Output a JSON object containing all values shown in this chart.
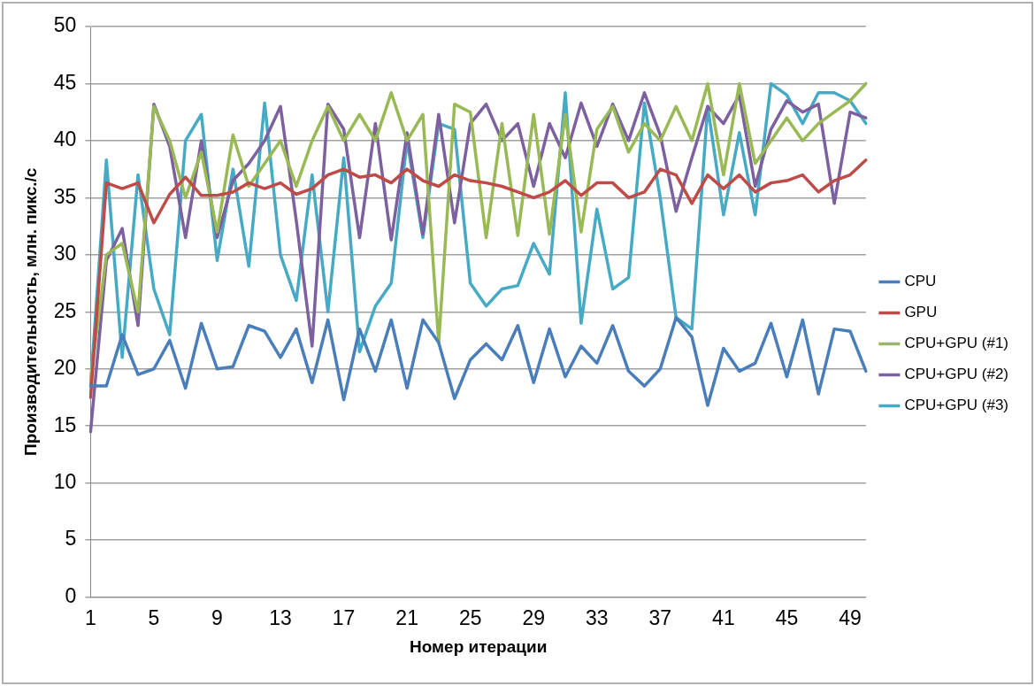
{
  "chart_data": {
    "type": "line",
    "xlabel": "Номер итерации",
    "ylabel": "Производительность, млн. пикс./с",
    "categories": [
      "1",
      null,
      null,
      null,
      "5",
      null,
      null,
      null,
      "9",
      null,
      null,
      null,
      "13",
      null,
      null,
      null,
      "17",
      null,
      null,
      null,
      "21",
      null,
      null,
      null,
      "25",
      null,
      null,
      null,
      "29",
      null,
      null,
      null,
      "33",
      null,
      null,
      null,
      "37",
      null,
      null,
      null,
      "41",
      null,
      null,
      null,
      "45",
      null,
      null,
      null,
      "49",
      null
    ],
    "ylim": [
      0,
      50
    ],
    "yticks": [
      0,
      5,
      10,
      15,
      20,
      25,
      30,
      35,
      40,
      45,
      50
    ],
    "grid": "y",
    "legend": "right",
    "marker": "none",
    "line_style": "solid",
    "series": [
      {
        "name": "CPU",
        "color": "#4a7ebb",
        "values": [
          18.5,
          18.5,
          23,
          19.5,
          20,
          22.5,
          18.3,
          24,
          20,
          20.2,
          23.8,
          23.3,
          21,
          23.5,
          18.8,
          24.3,
          17.3,
          23.5,
          19.8,
          24.3,
          18.3,
          24.3,
          22.3,
          17.4,
          20.8,
          22.2,
          20.8,
          23.8,
          18.8,
          23.5,
          19.3,
          22,
          20.5,
          23.8,
          19.8,
          18.5,
          20,
          24.5,
          22.8,
          16.8,
          21.8,
          19.8,
          20.5,
          24,
          19.3,
          24.3,
          17.8,
          23.5,
          23.3,
          19.8
        ]
      },
      {
        "name": "GPU",
        "color": "#be4b48",
        "values": [
          17.5,
          36.3,
          35.8,
          36.3,
          32.8,
          35.3,
          36.8,
          35.2,
          35.2,
          35.5,
          36.3,
          35.8,
          36.3,
          35.3,
          35.8,
          37,
          37.5,
          36.8,
          37,
          36.3,
          37.5,
          36.5,
          36,
          37,
          36.5,
          36.3,
          36,
          35.5,
          35,
          35.5,
          36.5,
          35.2,
          36.3,
          36.3,
          35,
          35.5,
          37.5,
          37,
          34.5,
          37,
          35.8,
          37,
          35.5,
          36.3,
          36.5,
          37,
          35.5,
          36.5,
          37,
          38.3
        ]
      },
      {
        "name": "CPU+GPU (#1)",
        "color": "#98b954",
        "values": [
          19,
          30,
          31,
          25,
          43,
          40,
          35,
          39,
          32,
          40.5,
          36,
          38,
          40,
          36,
          40,
          43,
          40,
          42.3,
          40,
          44.2,
          40,
          42.3,
          22.3,
          43.2,
          42.5,
          31.5,
          41.5,
          31.7,
          42.3,
          31.8,
          42.3,
          32,
          41,
          43,
          39,
          41.5,
          40,
          43,
          40,
          45,
          37,
          45,
          38,
          40,
          42,
          40,
          41.5,
          42.5,
          43.5,
          45
        ]
      },
      {
        "name": "CPU+GPU (#2)",
        "color": "#7d60a0",
        "values": [
          14.5,
          29.5,
          32.3,
          23.8,
          43.2,
          39.5,
          31.5,
          40,
          31.5,
          36.5,
          38,
          40,
          43,
          33,
          22,
          43.2,
          41,
          31.5,
          41.5,
          31.3,
          40.7,
          31.8,
          42.3,
          32.8,
          41.5,
          43.2,
          40,
          41.5,
          36,
          41.5,
          38.5,
          43.3,
          39.5,
          43.2,
          40,
          44.2,
          40.5,
          33.8,
          38.5,
          43,
          41.5,
          44,
          36,
          41,
          43.5,
          42.5,
          43.2,
          34.5,
          42.5,
          42
        ]
      },
      {
        "name": "CPU+GPU (#3)",
        "color": "#46aac5",
        "values": [
          18.5,
          38.3,
          21,
          37,
          27,
          23,
          40,
          42.3,
          29.5,
          37.5,
          29,
          43.3,
          30,
          26,
          37,
          25,
          38.5,
          21.5,
          25.5,
          27.5,
          40,
          31.5,
          41.5,
          41,
          27.5,
          25.5,
          27,
          27.3,
          31,
          28.3,
          44.2,
          24,
          34,
          27,
          28,
          43.3,
          35,
          24.5,
          23.5,
          43,
          33.5,
          40.7,
          33.5,
          45,
          44,
          41.5,
          44.2,
          44.2,
          43.5,
          41.5
        ]
      }
    ]
  }
}
